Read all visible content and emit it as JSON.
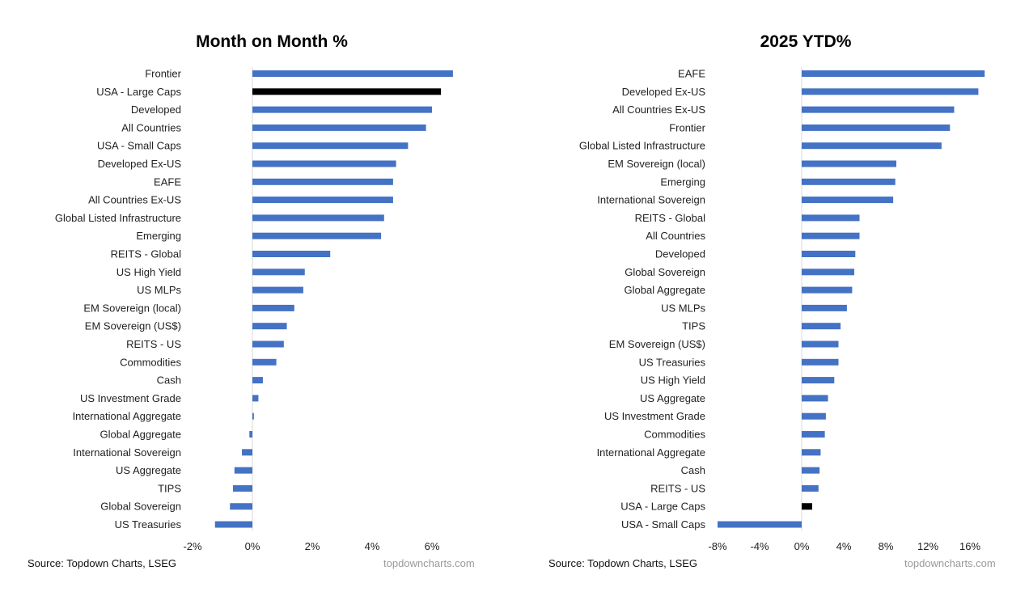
{
  "chart_data": [
    {
      "type": "bar",
      "orientation": "horizontal",
      "title": "Month on Month %",
      "categories": [
        "Frontier",
        "USA - Large Caps",
        "Developed",
        "All Countries",
        "USA - Small Caps",
        "Developed Ex-US",
        "EAFE",
        "All Countries Ex-US",
        "Global Listed Infrastructure",
        "Emerging",
        "REITS - Global",
        "US High Yield",
        "US MLPs",
        "EM Sovereign (local)",
        "EM Sovereign (US$)",
        "REITS - US",
        "Commodities",
        "Cash",
        "US Investment Grade",
        "International Aggregate",
        "Global Aggregate",
        "International Sovereign",
        "US Aggregate",
        "TIPS",
        "Global Sovereign",
        "US Treasuries"
      ],
      "values": [
        6.7,
        6.3,
        6.0,
        5.8,
        5.2,
        4.8,
        4.7,
        4.7,
        4.4,
        4.3,
        2.6,
        1.75,
        1.7,
        1.4,
        1.15,
        1.05,
        0.8,
        0.35,
        0.2,
        0.05,
        -0.1,
        -0.35,
        -0.6,
        -0.65,
        -0.75,
        -1.25
      ],
      "highlight": "USA - Large Caps",
      "bar_color": "#4472c4",
      "highlight_color": "#000000",
      "xlim": [
        -2,
        8
      ],
      "xticks": [
        -2,
        0,
        2,
        4,
        6
      ],
      "xtick_labels": [
        "-2%",
        "0%",
        "2%",
        "4%",
        "6%"
      ],
      "source": "Source: Topdown Charts, LSEG",
      "site": "topdowncharts.com"
    },
    {
      "type": "bar",
      "orientation": "horizontal",
      "title": "2025 YTD%",
      "categories": [
        "EAFE",
        "Developed Ex-US",
        "All Countries Ex-US",
        "Frontier",
        "Global Listed Infrastructure",
        "EM Sovereign (local)",
        "Emerging",
        "International Sovereign",
        "REITS - Global",
        "All Countries",
        "Developed",
        "Global Sovereign",
        "Global Aggregate",
        "US MLPs",
        "TIPS",
        "EM Sovereign (US$)",
        "US Treasuries",
        "US High Yield",
        "US Aggregate",
        "US Investment Grade",
        "Commodities",
        "International Aggregate",
        "Cash",
        "REITS - US",
        "USA - Large Caps",
        "USA - Small Caps"
      ],
      "values": [
        17.4,
        16.8,
        14.5,
        14.1,
        13.3,
        9.0,
        8.9,
        8.7,
        5.5,
        5.5,
        5.1,
        5.0,
        4.8,
        4.3,
        3.7,
        3.5,
        3.5,
        3.1,
        2.5,
        2.3,
        2.2,
        1.8,
        1.7,
        1.6,
        1.0,
        -8.0
      ],
      "highlight": "USA - Large Caps",
      "bar_color": "#4472c4",
      "highlight_color": "#000000",
      "xlim": [
        -8,
        20
      ],
      "xticks": [
        -8,
        -4,
        0,
        4,
        8,
        12,
        16
      ],
      "xtick_labels": [
        "-8%",
        "-4%",
        "0%",
        "4%",
        "8%",
        "12%",
        "16%"
      ],
      "source": "Source: Topdown Charts, LSEG",
      "site": "topdowncharts.com"
    }
  ]
}
